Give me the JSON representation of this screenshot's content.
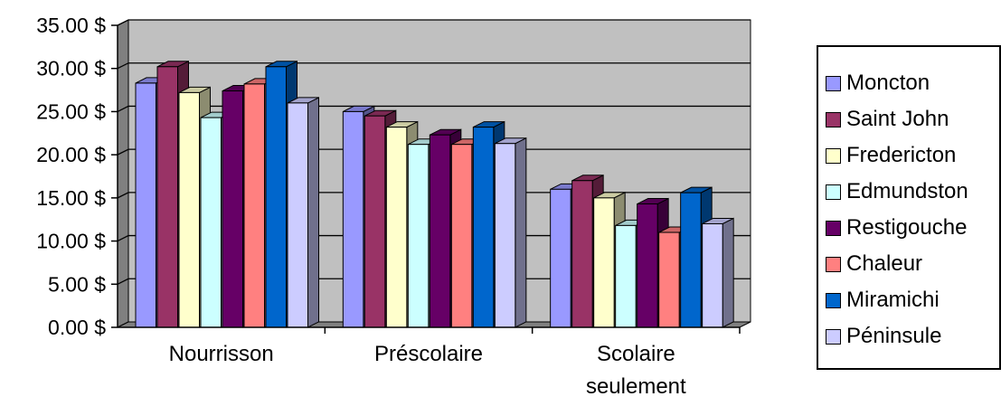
{
  "chart_data": {
    "type": "bar",
    "categories": [
      "Nourrisson",
      "Préscolaire",
      "Scolaire seulement"
    ],
    "category_lines": [
      [
        "Nourrisson"
      ],
      [
        "Préscolaire"
      ],
      [
        "Scolaire",
        "seulement"
      ]
    ],
    "series": [
      {
        "name": "Moncton",
        "values": [
          28.3,
          25.0,
          16.0
        ],
        "color": "#9999ff"
      },
      {
        "name": "Saint John",
        "values": [
          30.2,
          24.5,
          17.0
        ],
        "color": "#993366"
      },
      {
        "name": "Fredericton",
        "values": [
          27.2,
          23.2,
          15.0
        ],
        "color": "#ffffcc"
      },
      {
        "name": "Edmundston",
        "values": [
          24.3,
          21.2,
          11.8
        ],
        "color": "#ccffff"
      },
      {
        "name": "Restigouche",
        "values": [
          27.4,
          22.3,
          14.3
        ],
        "color": "#660066"
      },
      {
        "name": "Chaleur",
        "values": [
          28.2,
          21.2,
          11.0
        ],
        "color": "#ff8080"
      },
      {
        "name": "Miramichi",
        "values": [
          30.2,
          23.2,
          15.6
        ],
        "color": "#0066cc"
      },
      {
        "name": "Péninsule",
        "values": [
          26.0,
          21.3,
          12.0
        ],
        "color": "#ccccff"
      }
    ],
    "yticks": [
      "0.00 $",
      "5.00 $",
      "10.00 $",
      "15.00 $",
      "20.00 $",
      "25.00 $",
      "30.00 $",
      "35.00 $"
    ],
    "ylim": [
      0,
      35
    ],
    "ystep": 5,
    "grid": true,
    "legend_position": "right",
    "plot_background": "#c0c0c0"
  }
}
